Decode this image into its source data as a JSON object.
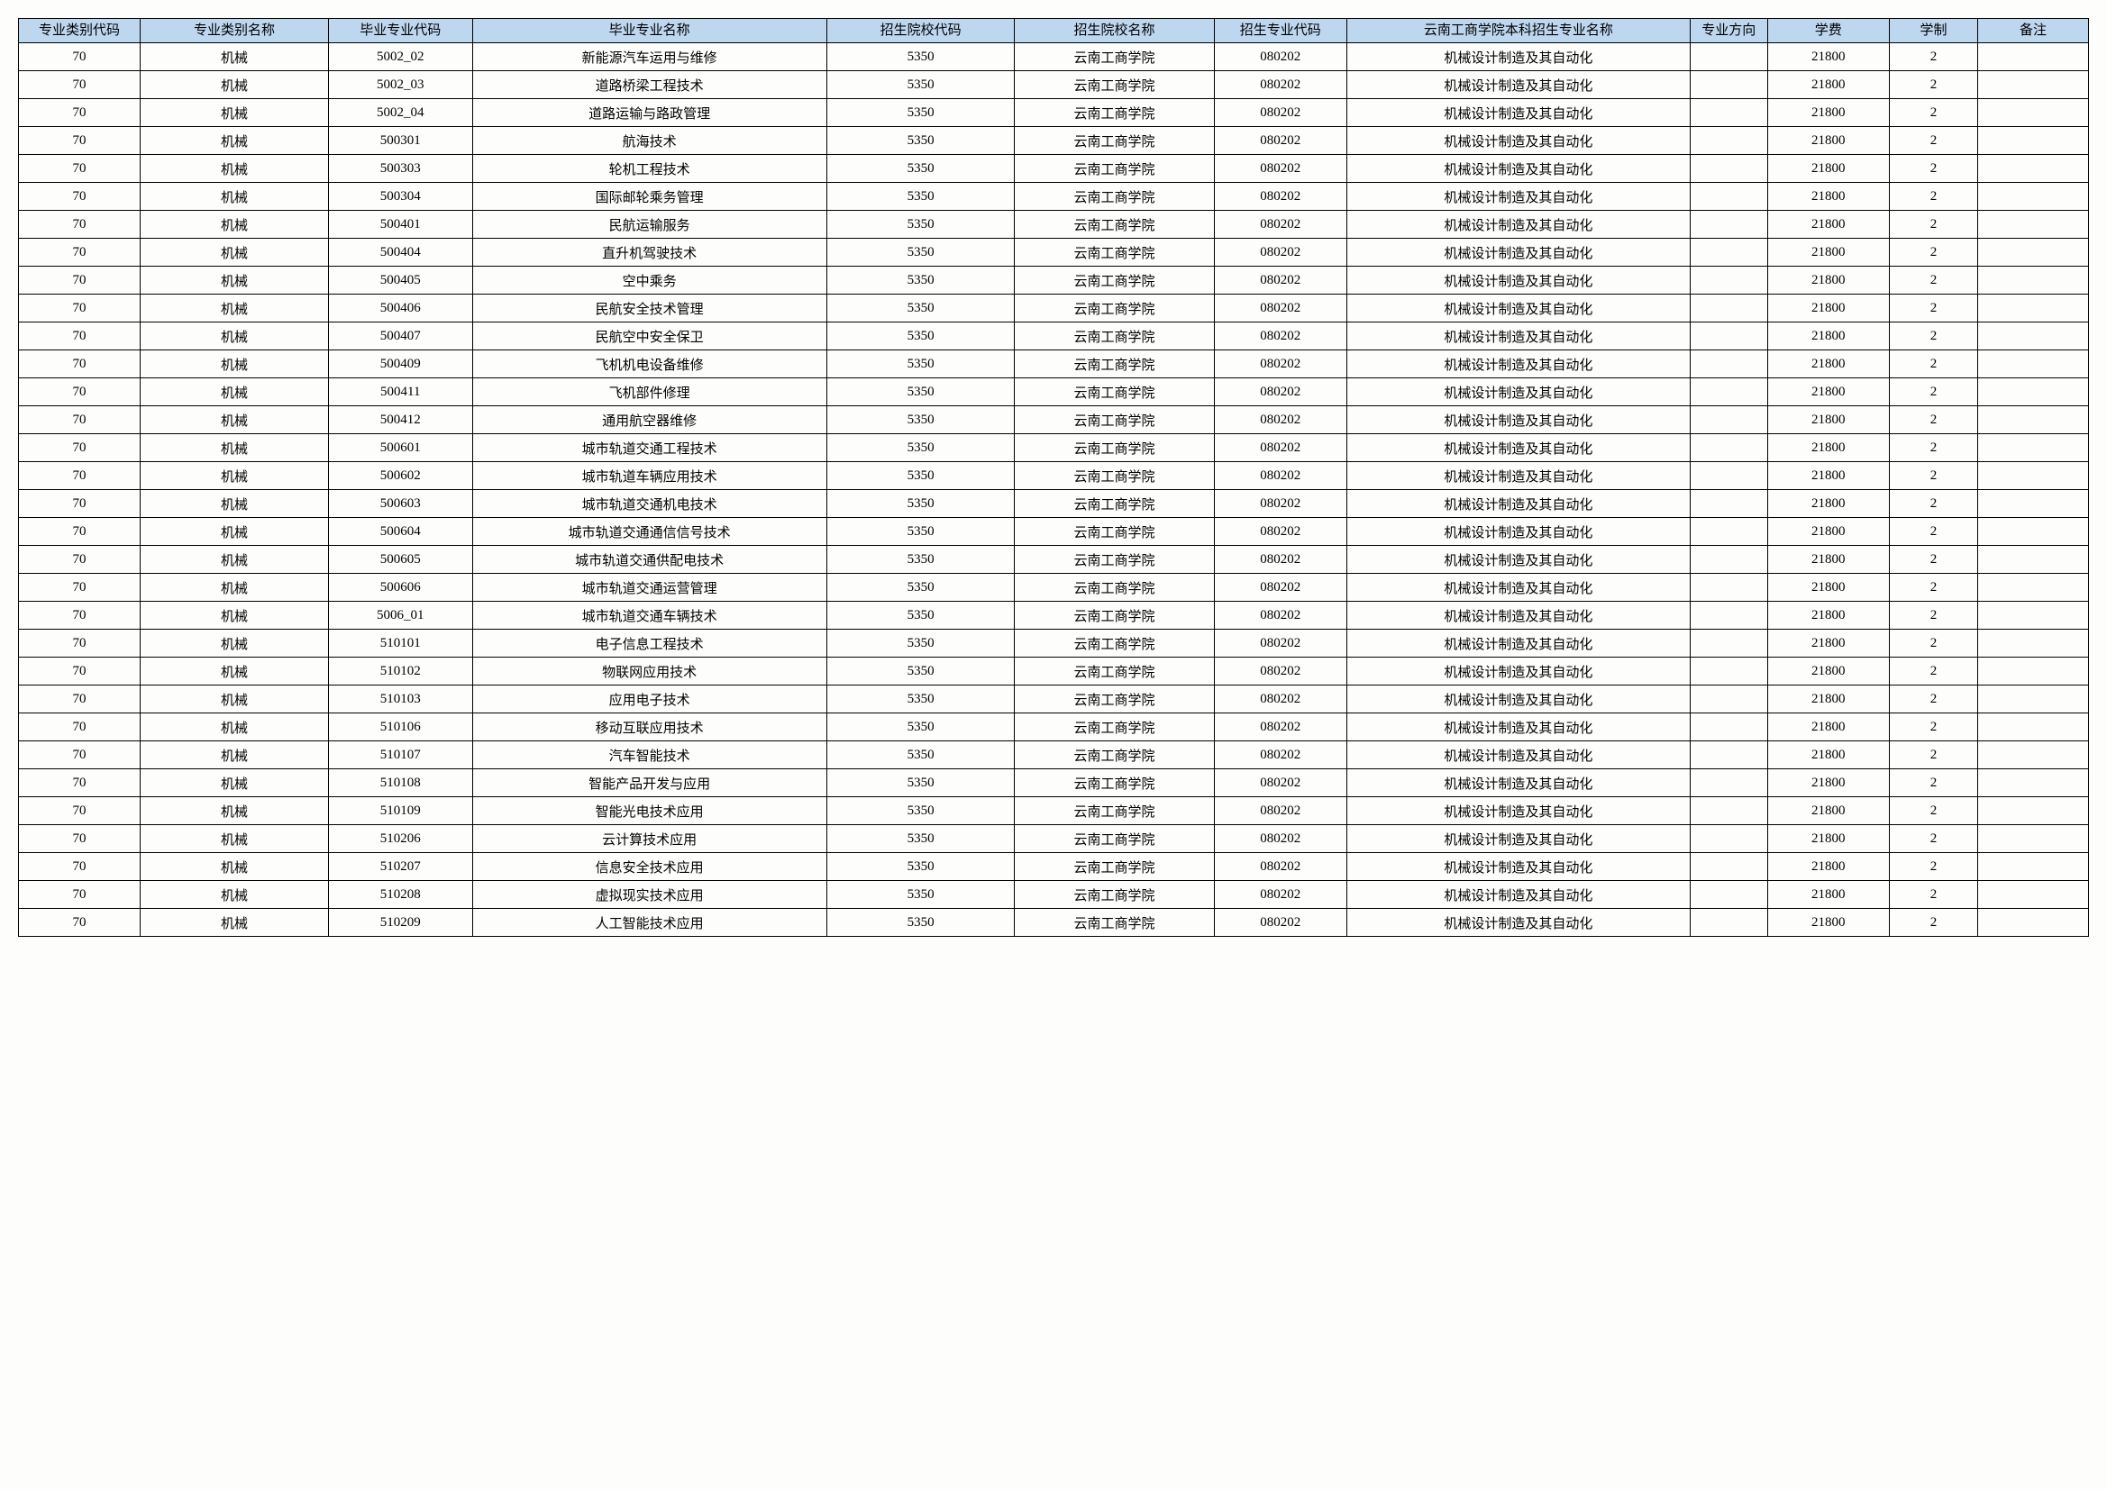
{
  "table": {
    "header_bg": "#bdd7ee",
    "border_color": "#000000",
    "columns": [
      "专业类别代码",
      "专业类别名称",
      "毕业专业代码",
      "毕业专业名称",
      "招生院校代码",
      "招生院校名称",
      "招生专业代码",
      "云南工商学院本科招生专业名称",
      "专业方向",
      "学费",
      "学制",
      "备注"
    ],
    "rows": [
      [
        "70",
        "机械",
        "5002_02",
        "新能源汽车运用与维修",
        "5350",
        "云南工商学院",
        "080202",
        "机械设计制造及其自动化",
        "",
        "21800",
        "2",
        ""
      ],
      [
        "70",
        "机械",
        "5002_03",
        "道路桥梁工程技术",
        "5350",
        "云南工商学院",
        "080202",
        "机械设计制造及其自动化",
        "",
        "21800",
        "2",
        ""
      ],
      [
        "70",
        "机械",
        "5002_04",
        "道路运输与路政管理",
        "5350",
        "云南工商学院",
        "080202",
        "机械设计制造及其自动化",
        "",
        "21800",
        "2",
        ""
      ],
      [
        "70",
        "机械",
        "500301",
        "航海技术",
        "5350",
        "云南工商学院",
        "080202",
        "机械设计制造及其自动化",
        "",
        "21800",
        "2",
        ""
      ],
      [
        "70",
        "机械",
        "500303",
        "轮机工程技术",
        "5350",
        "云南工商学院",
        "080202",
        "机械设计制造及其自动化",
        "",
        "21800",
        "2",
        ""
      ],
      [
        "70",
        "机械",
        "500304",
        "国际邮轮乘务管理",
        "5350",
        "云南工商学院",
        "080202",
        "机械设计制造及其自动化",
        "",
        "21800",
        "2",
        ""
      ],
      [
        "70",
        "机械",
        "500401",
        "民航运输服务",
        "5350",
        "云南工商学院",
        "080202",
        "机械设计制造及其自动化",
        "",
        "21800",
        "2",
        ""
      ],
      [
        "70",
        "机械",
        "500404",
        "直升机驾驶技术",
        "5350",
        "云南工商学院",
        "080202",
        "机械设计制造及其自动化",
        "",
        "21800",
        "2",
        ""
      ],
      [
        "70",
        "机械",
        "500405",
        "空中乘务",
        "5350",
        "云南工商学院",
        "080202",
        "机械设计制造及其自动化",
        "",
        "21800",
        "2",
        ""
      ],
      [
        "70",
        "机械",
        "500406",
        "民航安全技术管理",
        "5350",
        "云南工商学院",
        "080202",
        "机械设计制造及其自动化",
        "",
        "21800",
        "2",
        ""
      ],
      [
        "70",
        "机械",
        "500407",
        "民航空中安全保卫",
        "5350",
        "云南工商学院",
        "080202",
        "机械设计制造及其自动化",
        "",
        "21800",
        "2",
        ""
      ],
      [
        "70",
        "机械",
        "500409",
        "飞机机电设备维修",
        "5350",
        "云南工商学院",
        "080202",
        "机械设计制造及其自动化",
        "",
        "21800",
        "2",
        ""
      ],
      [
        "70",
        "机械",
        "500411",
        "飞机部件修理",
        "5350",
        "云南工商学院",
        "080202",
        "机械设计制造及其自动化",
        "",
        "21800",
        "2",
        ""
      ],
      [
        "70",
        "机械",
        "500412",
        "通用航空器维修",
        "5350",
        "云南工商学院",
        "080202",
        "机械设计制造及其自动化",
        "",
        "21800",
        "2",
        ""
      ],
      [
        "70",
        "机械",
        "500601",
        "城市轨道交通工程技术",
        "5350",
        "云南工商学院",
        "080202",
        "机械设计制造及其自动化",
        "",
        "21800",
        "2",
        ""
      ],
      [
        "70",
        "机械",
        "500602",
        "城市轨道车辆应用技术",
        "5350",
        "云南工商学院",
        "080202",
        "机械设计制造及其自动化",
        "",
        "21800",
        "2",
        ""
      ],
      [
        "70",
        "机械",
        "500603",
        "城市轨道交通机电技术",
        "5350",
        "云南工商学院",
        "080202",
        "机械设计制造及其自动化",
        "",
        "21800",
        "2",
        ""
      ],
      [
        "70",
        "机械",
        "500604",
        "城市轨道交通通信信号技术",
        "5350",
        "云南工商学院",
        "080202",
        "机械设计制造及其自动化",
        "",
        "21800",
        "2",
        ""
      ],
      [
        "70",
        "机械",
        "500605",
        "城市轨道交通供配电技术",
        "5350",
        "云南工商学院",
        "080202",
        "机械设计制造及其自动化",
        "",
        "21800",
        "2",
        ""
      ],
      [
        "70",
        "机械",
        "500606",
        "城市轨道交通运营管理",
        "5350",
        "云南工商学院",
        "080202",
        "机械设计制造及其自动化",
        "",
        "21800",
        "2",
        ""
      ],
      [
        "70",
        "机械",
        "5006_01",
        "城市轨道交通车辆技术",
        "5350",
        "云南工商学院",
        "080202",
        "机械设计制造及其自动化",
        "",
        "21800",
        "2",
        ""
      ],
      [
        "70",
        "机械",
        "510101",
        "电子信息工程技术",
        "5350",
        "云南工商学院",
        "080202",
        "机械设计制造及其自动化",
        "",
        "21800",
        "2",
        ""
      ],
      [
        "70",
        "机械",
        "510102",
        "物联网应用技术",
        "5350",
        "云南工商学院",
        "080202",
        "机械设计制造及其自动化",
        "",
        "21800",
        "2",
        ""
      ],
      [
        "70",
        "机械",
        "510103",
        "应用电子技术",
        "5350",
        "云南工商学院",
        "080202",
        "机械设计制造及其自动化",
        "",
        "21800",
        "2",
        ""
      ],
      [
        "70",
        "机械",
        "510106",
        "移动互联应用技术",
        "5350",
        "云南工商学院",
        "080202",
        "机械设计制造及其自动化",
        "",
        "21800",
        "2",
        ""
      ],
      [
        "70",
        "机械",
        "510107",
        "汽车智能技术",
        "5350",
        "云南工商学院",
        "080202",
        "机械设计制造及其自动化",
        "",
        "21800",
        "2",
        ""
      ],
      [
        "70",
        "机械",
        "510108",
        "智能产品开发与应用",
        "5350",
        "云南工商学院",
        "080202",
        "机械设计制造及其自动化",
        "",
        "21800",
        "2",
        ""
      ],
      [
        "70",
        "机械",
        "510109",
        "智能光电技术应用",
        "5350",
        "云南工商学院",
        "080202",
        "机械设计制造及其自动化",
        "",
        "21800",
        "2",
        ""
      ],
      [
        "70",
        "机械",
        "510206",
        "云计算技术应用",
        "5350",
        "云南工商学院",
        "080202",
        "机械设计制造及其自动化",
        "",
        "21800",
        "2",
        ""
      ],
      [
        "70",
        "机械",
        "510207",
        "信息安全技术应用",
        "5350",
        "云南工商学院",
        "080202",
        "机械设计制造及其自动化",
        "",
        "21800",
        "2",
        ""
      ],
      [
        "70",
        "机械",
        "510208",
        "虚拟现实技术应用",
        "5350",
        "云南工商学院",
        "080202",
        "机械设计制造及其自动化",
        "",
        "21800",
        "2",
        ""
      ],
      [
        "70",
        "机械",
        "510209",
        "人工智能技术应用",
        "5350",
        "云南工商学院",
        "080202",
        "机械设计制造及其自动化",
        "",
        "21800",
        "2",
        ""
      ]
    ]
  }
}
